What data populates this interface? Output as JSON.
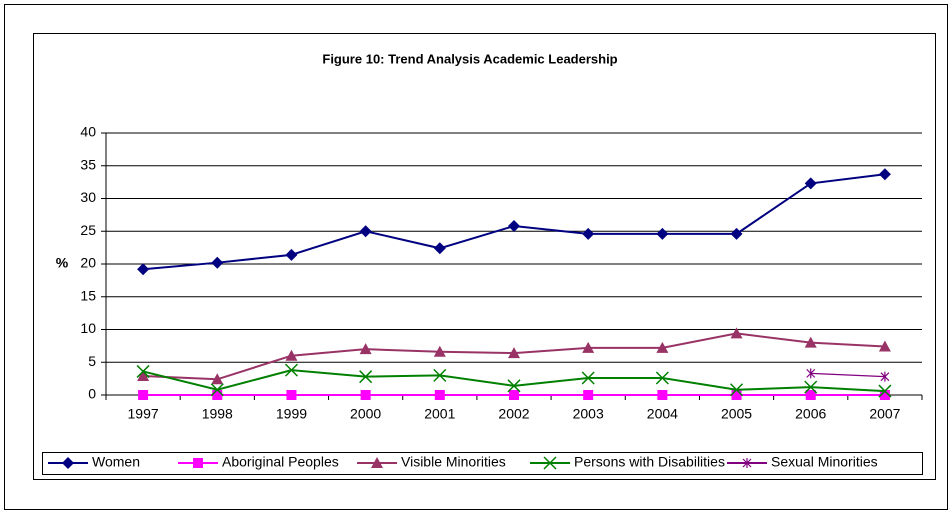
{
  "chart_data": {
    "type": "line",
    "title": "Figure 10: Trend Analysis Academic Leadership",
    "y_label": "%",
    "categories": [
      "1997",
      "1998",
      "1999",
      "2000",
      "2001",
      "2002",
      "2003",
      "2004",
      "2005",
      "2006",
      "2007"
    ],
    "series": [
      {
        "name": "Women",
        "color": "#000080",
        "marker": "diamond",
        "values": [
          19.2,
          20.2,
          21.4,
          25.0,
          22.4,
          25.8,
          24.6,
          24.6,
          24.6,
          32.3,
          33.7
        ]
      },
      {
        "name": "Aboriginal Peoples",
        "color": "#ff00ff",
        "marker": "square",
        "values": [
          0,
          0,
          0,
          0,
          0,
          0,
          0,
          0,
          0,
          0,
          0
        ]
      },
      {
        "name": "Visible Minorities",
        "color": "#993366",
        "marker": "triangle",
        "values": [
          2.9,
          2.4,
          6.0,
          7.0,
          6.6,
          6.4,
          7.2,
          7.2,
          9.4,
          8.0,
          7.4
        ]
      },
      {
        "name": "Persons with Disabilities",
        "color": "#008000",
        "marker": "x",
        "values": [
          3.6,
          0.8,
          3.8,
          2.8,
          3.0,
          1.4,
          2.6,
          2.6,
          0.8,
          1.2,
          0.6
        ]
      },
      {
        "name": "Sexual Minorities",
        "color": "#800080",
        "marker": "asterisk",
        "values": [
          null,
          null,
          null,
          null,
          null,
          null,
          null,
          null,
          null,
          3.3,
          2.8
        ]
      }
    ],
    "ylim": [
      0,
      40
    ],
    "yticks": [
      0,
      5,
      10,
      15,
      20,
      25,
      30,
      35,
      40
    ],
    "grid": true,
    "legend": "bottom"
  }
}
